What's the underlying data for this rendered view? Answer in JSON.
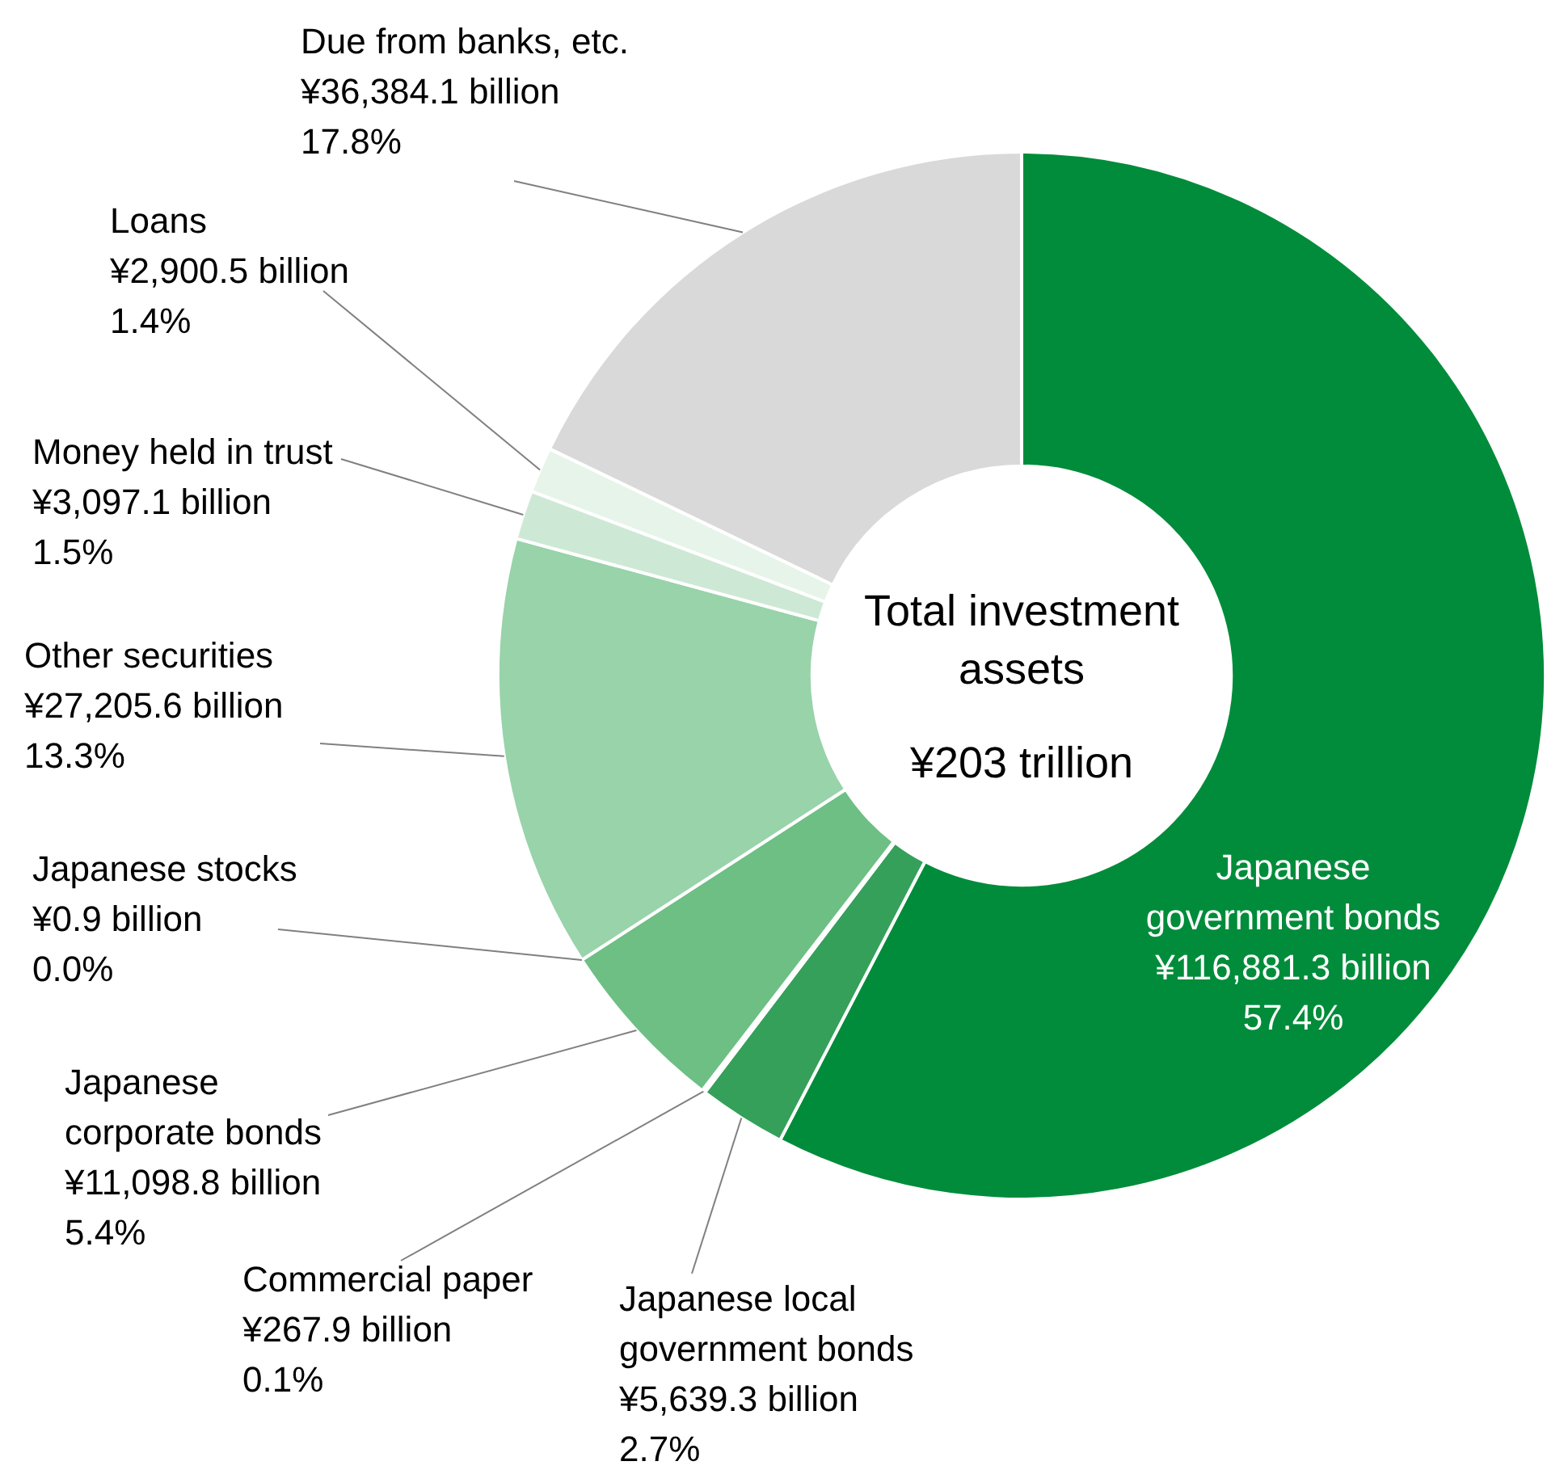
{
  "chart_data": {
    "type": "donut",
    "categories": [
      "Japanese government bonds",
      "Japanese local government bonds",
      "Commercial paper",
      "Japanese corporate bonds",
      "Japanese stocks",
      "Other securities",
      "Money held in trust",
      "Loans",
      "Due from banks, etc."
    ],
    "values": [
      57.4,
      2.7,
      0.1,
      5.4,
      0.0,
      13.3,
      1.5,
      1.4,
      17.8
    ],
    "colors": [
      "#008c3a",
      "#35a05a",
      "#c8e6cf",
      "#6dbf84",
      "#4caf6a",
      "#98d3aa",
      "#cde9d5",
      "#e6f4ea",
      "#d9d9d9"
    ],
    "value_labels": [
      "¥116,881.3 billion\n57.4%",
      "¥5,639.3 billion\n2.7%",
      "¥267.9 billion\n0.1%",
      "¥11,098.8 billion\n5.4%",
      "¥0.9 billion\n0.0%",
      "¥27,205.6 billion\n13.3%",
      "¥3,097.1 billion\n1.5%",
      "¥2,900.5 billion\n1.4%",
      "¥36,384.1 billion\n17.8%"
    ],
    "annotations": [
      "Total investment assets",
      "¥203 trillion"
    ],
    "legend": false
  }
}
